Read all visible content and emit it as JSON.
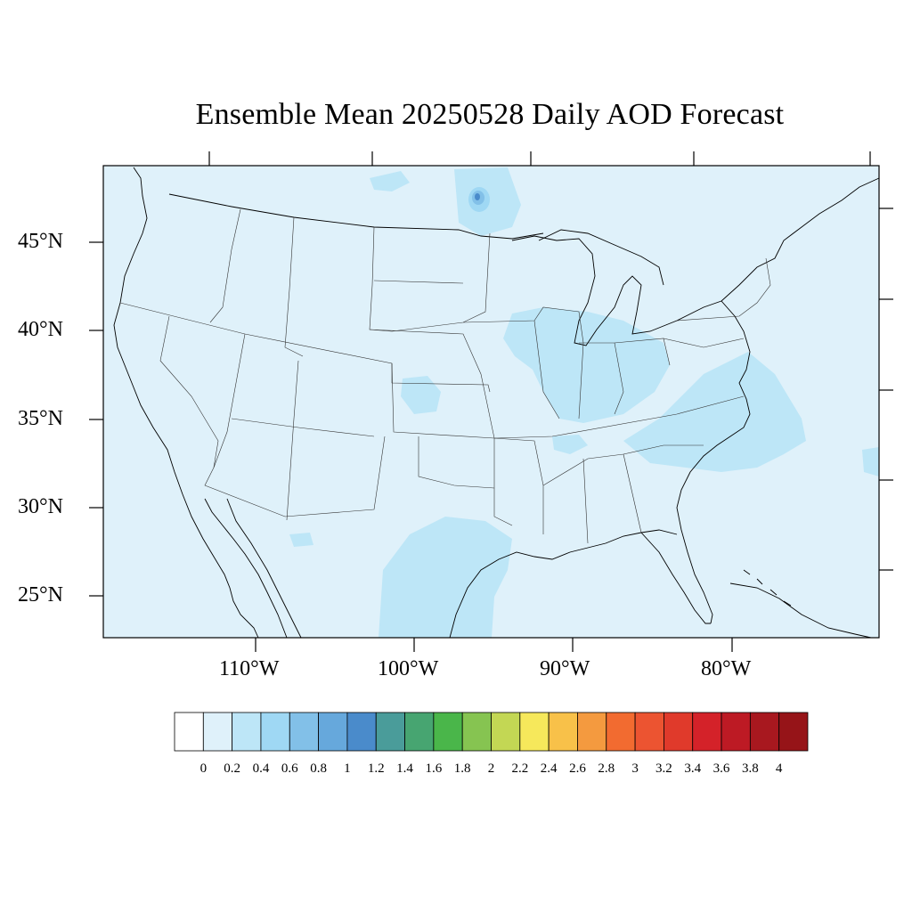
{
  "title": "Ensemble Mean 20250528 Daily AOD Forecast",
  "map": {
    "background_fill": "#dff1fa",
    "lat_labels": [
      "45°N",
      "40°N",
      "35°N",
      "30°N",
      "25°N"
    ],
    "lon_labels": [
      "110°W",
      "100°W",
      "90°W",
      "80°W"
    ]
  },
  "colorbar": {
    "labels": [
      "0",
      "0.2",
      "0.4",
      "0.6",
      "0.8",
      "1",
      "1.2",
      "1.4",
      "1.6",
      "1.8",
      "2",
      "2.2",
      "2.4",
      "2.6",
      "2.8",
      "3",
      "3.2",
      "3.4",
      "3.6",
      "3.8",
      "4"
    ],
    "colors": [
      "#ffffff",
      "#dff1fa",
      "#bde6f7",
      "#9fd8f4",
      "#82c0e8",
      "#66a8dc",
      "#4a8bcb",
      "#4a9c9a",
      "#47a571",
      "#4ab64a",
      "#86c451",
      "#c3d754",
      "#f6e85b",
      "#f8c149",
      "#f49a3f",
      "#f26b30",
      "#ec5431",
      "#e03a2b",
      "#d42229",
      "#bd1a24",
      "#a8181f",
      "#961418"
    ]
  },
  "aod_features": [
    {
      "region": "Lake Superior area",
      "level": "0.4-1.4"
    },
    {
      "region": "Midwest / Ohio Valley",
      "level": "0.2-0.4"
    },
    {
      "region": "Carolinas coast",
      "level": "0.2-0.4"
    },
    {
      "region": "South Texas",
      "level": "0.2-0.4"
    }
  ]
}
